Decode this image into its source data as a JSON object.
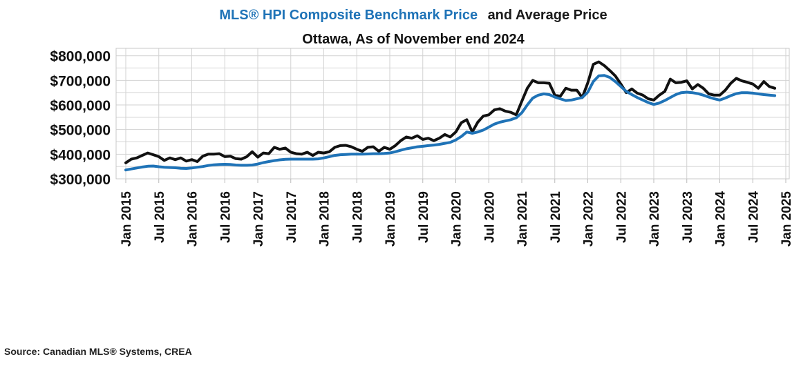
{
  "chart_data": {
    "type": "line",
    "title_part1": "MLS® HPI Composite Benchmark Price",
    "title_part2": "and Average Price",
    "subtitle": "Ottawa, As of November end 2024",
    "source": "Source: Canadian MLS® Systems, CREA",
    "xlabel": "",
    "ylabel": "",
    "ylim": [
      300000,
      800000
    ],
    "grid": true,
    "y_ticks": [
      {
        "value": 800000,
        "label": "$800,000"
      },
      {
        "value": 700000,
        "label": "$700,000"
      },
      {
        "value": 600000,
        "label": "$600,000"
      },
      {
        "value": 500000,
        "label": "$500,000"
      },
      {
        "value": 400000,
        "label": "$400,000"
      },
      {
        "value": 300000,
        "label": "$300,000"
      }
    ],
    "x_ticks": [
      {
        "value": "2015-01",
        "label": "Jan 2015"
      },
      {
        "value": "2015-07",
        "label": "Jul 2015"
      },
      {
        "value": "2016-01",
        "label": "Jan 2016"
      },
      {
        "value": "2016-07",
        "label": "Jul 2016"
      },
      {
        "value": "2017-01",
        "label": "Jan 2017"
      },
      {
        "value": "2017-07",
        "label": "Jul 2017"
      },
      {
        "value": "2018-01",
        "label": "Jan 2018"
      },
      {
        "value": "2018-07",
        "label": "Jul 2018"
      },
      {
        "value": "2019-01",
        "label": "Jan 2019"
      },
      {
        "value": "2019-07",
        "label": "Jul 2019"
      },
      {
        "value": "2020-01",
        "label": "Jan 2020"
      },
      {
        "value": "2020-07",
        "label": "Jul 2020"
      },
      {
        "value": "2021-01",
        "label": "Jan 2021"
      },
      {
        "value": "2021-07",
        "label": "Jul 2021"
      },
      {
        "value": "2022-01",
        "label": "Jan 2022"
      },
      {
        "value": "2022-07",
        "label": "Jul 2022"
      },
      {
        "value": "2023-01",
        "label": "Jan 2023"
      },
      {
        "value": "2023-07",
        "label": "Jul 2023"
      },
      {
        "value": "2024-01",
        "label": "Jan 2024"
      },
      {
        "value": "2024-07",
        "label": "Jul 2024"
      },
      {
        "value": "2025-01",
        "label": "Jan 2025"
      }
    ],
    "series": [
      {
        "color": "#111111",
        "x": [
          "2015-01",
          "2015-02",
          "2015-03",
          "2015-04",
          "2015-05",
          "2015-06",
          "2015-07",
          "2015-08",
          "2015-09",
          "2015-10",
          "2015-11",
          "2015-12",
          "2016-01",
          "2016-02",
          "2016-03",
          "2016-04",
          "2016-05",
          "2016-06",
          "2016-07",
          "2016-08",
          "2016-09",
          "2016-10",
          "2016-11",
          "2016-12",
          "2017-01",
          "2017-02",
          "2017-03",
          "2017-04",
          "2017-05",
          "2017-06",
          "2017-07",
          "2017-08",
          "2017-09",
          "2017-10",
          "2017-11",
          "2017-12",
          "2018-01",
          "2018-02",
          "2018-03",
          "2018-04",
          "2018-05",
          "2018-06",
          "2018-07",
          "2018-08",
          "2018-09",
          "2018-10",
          "2018-11",
          "2018-12",
          "2019-01",
          "2019-02",
          "2019-03",
          "2019-04",
          "2019-05",
          "2019-06",
          "2019-07",
          "2019-08",
          "2019-09",
          "2019-10",
          "2019-11",
          "2019-12",
          "2020-01",
          "2020-02",
          "2020-03",
          "2020-04",
          "2020-05",
          "2020-06",
          "2020-07",
          "2020-08",
          "2020-09",
          "2020-10",
          "2020-11",
          "2020-12",
          "2021-01",
          "2021-02",
          "2021-03",
          "2021-04",
          "2021-05",
          "2021-06",
          "2021-07",
          "2021-08",
          "2021-09",
          "2021-10",
          "2021-11",
          "2021-12",
          "2022-01",
          "2022-02",
          "2022-03",
          "2022-04",
          "2022-05",
          "2022-06",
          "2022-07",
          "2022-08",
          "2022-09",
          "2022-10",
          "2022-11",
          "2022-12",
          "2023-01",
          "2023-02",
          "2023-03",
          "2023-04",
          "2023-05",
          "2023-06",
          "2023-07",
          "2023-08",
          "2023-09",
          "2023-10",
          "2023-11",
          "2023-12",
          "2024-01",
          "2024-02",
          "2024-03",
          "2024-04",
          "2024-05",
          "2024-06",
          "2024-07",
          "2024-08",
          "2024-09",
          "2024-10",
          "2024-11"
        ],
        "values": [
          365000,
          380000,
          385000,
          395000,
          405000,
          398000,
          390000,
          375000,
          385000,
          378000,
          385000,
          372000,
          378000,
          370000,
          392000,
          400000,
          400000,
          402000,
          390000,
          392000,
          382000,
          380000,
          390000,
          410000,
          388000,
          405000,
          402000,
          428000,
          420000,
          425000,
          408000,
          402000,
          400000,
          408000,
          395000,
          408000,
          405000,
          410000,
          428000,
          435000,
          436000,
          430000,
          420000,
          412000,
          428000,
          430000,
          412000,
          428000,
          420000,
          435000,
          455000,
          470000,
          465000,
          475000,
          460000,
          465000,
          455000,
          465000,
          480000,
          470000,
          490000,
          528000,
          540000,
          490000,
          530000,
          555000,
          560000,
          580000,
          585000,
          575000,
          570000,
          560000,
          615000,
          668000,
          700000,
          690000,
          690000,
          688000,
          640000,
          635000,
          668000,
          660000,
          660000,
          630000,
          690000,
          765000,
          775000,
          760000,
          740000,
          718000,
          685000,
          650000,
          665000,
          648000,
          640000,
          625000,
          620000,
          640000,
          655000,
          705000,
          690000,
          692000,
          698000,
          665000,
          683000,
          668000,
          645000,
          640000,
          640000,
          660000,
          688000,
          708000,
          698000,
          692000,
          685000,
          668000,
          695000,
          675000,
          668000
        ]
      },
      {
        "color": "#1f73b7",
        "x": [
          "2015-01",
          "2015-02",
          "2015-03",
          "2015-04",
          "2015-05",
          "2015-06",
          "2015-07",
          "2015-08",
          "2015-09",
          "2015-10",
          "2015-11",
          "2015-12",
          "2016-01",
          "2016-02",
          "2016-03",
          "2016-04",
          "2016-05",
          "2016-06",
          "2016-07",
          "2016-08",
          "2016-09",
          "2016-10",
          "2016-11",
          "2016-12",
          "2017-01",
          "2017-02",
          "2017-03",
          "2017-04",
          "2017-05",
          "2017-06",
          "2017-07",
          "2017-08",
          "2017-09",
          "2017-10",
          "2017-11",
          "2017-12",
          "2018-01",
          "2018-02",
          "2018-03",
          "2018-04",
          "2018-05",
          "2018-06",
          "2018-07",
          "2018-08",
          "2018-09",
          "2018-10",
          "2018-11",
          "2018-12",
          "2019-01",
          "2019-02",
          "2019-03",
          "2019-04",
          "2019-05",
          "2019-06",
          "2019-07",
          "2019-08",
          "2019-09",
          "2019-10",
          "2019-11",
          "2019-12",
          "2020-01",
          "2020-02",
          "2020-03",
          "2020-04",
          "2020-05",
          "2020-06",
          "2020-07",
          "2020-08",
          "2020-09",
          "2020-10",
          "2020-11",
          "2020-12",
          "2021-01",
          "2021-02",
          "2021-03",
          "2021-04",
          "2021-05",
          "2021-06",
          "2021-07",
          "2021-08",
          "2021-09",
          "2021-10",
          "2021-11",
          "2021-12",
          "2022-01",
          "2022-02",
          "2022-03",
          "2022-04",
          "2022-05",
          "2022-06",
          "2022-07",
          "2022-08",
          "2022-09",
          "2022-10",
          "2022-11",
          "2022-12",
          "2023-01",
          "2023-02",
          "2023-03",
          "2023-04",
          "2023-05",
          "2023-06",
          "2023-07",
          "2023-08",
          "2023-09",
          "2023-10",
          "2023-11",
          "2023-12",
          "2024-01",
          "2024-02",
          "2024-03",
          "2024-04",
          "2024-05",
          "2024-06",
          "2024-07",
          "2024-08",
          "2024-09",
          "2024-10",
          "2024-11"
        ],
        "values": [
          336000,
          340000,
          344000,
          348000,
          351000,
          352000,
          349000,
          347000,
          346000,
          345000,
          343000,
          342000,
          344000,
          347000,
          350000,
          354000,
          357000,
          358000,
          359000,
          358000,
          356000,
          355000,
          355000,
          356000,
          360000,
          366000,
          370000,
          374000,
          377000,
          379000,
          380000,
          380000,
          380000,
          380000,
          380000,
          381000,
          385000,
          390000,
          395000,
          398000,
          399000,
          400000,
          400000,
          400000,
          401000,
          402000,
          402000,
          403000,
          405000,
          410000,
          416000,
          422000,
          426000,
          430000,
          432000,
          435000,
          437000,
          440000,
          444000,
          448000,
          458000,
          472000,
          490000,
          485000,
          490000,
          498000,
          510000,
          522000,
          530000,
          535000,
          540000,
          548000,
          568000,
          600000,
          628000,
          640000,
          645000,
          642000,
          632000,
          625000,
          618000,
          620000,
          625000,
          630000,
          652000,
          695000,
          718000,
          720000,
          712000,
          695000,
          675000,
          655000,
          642000,
          630000,
          620000,
          610000,
          602000,
          608000,
          618000,
          630000,
          642000,
          650000,
          652000,
          650000,
          646000,
          640000,
          632000,
          625000,
          620000,
          628000,
          638000,
          646000,
          650000,
          650000,
          648000,
          645000,
          642000,
          640000,
          638000
        ]
      }
    ]
  }
}
